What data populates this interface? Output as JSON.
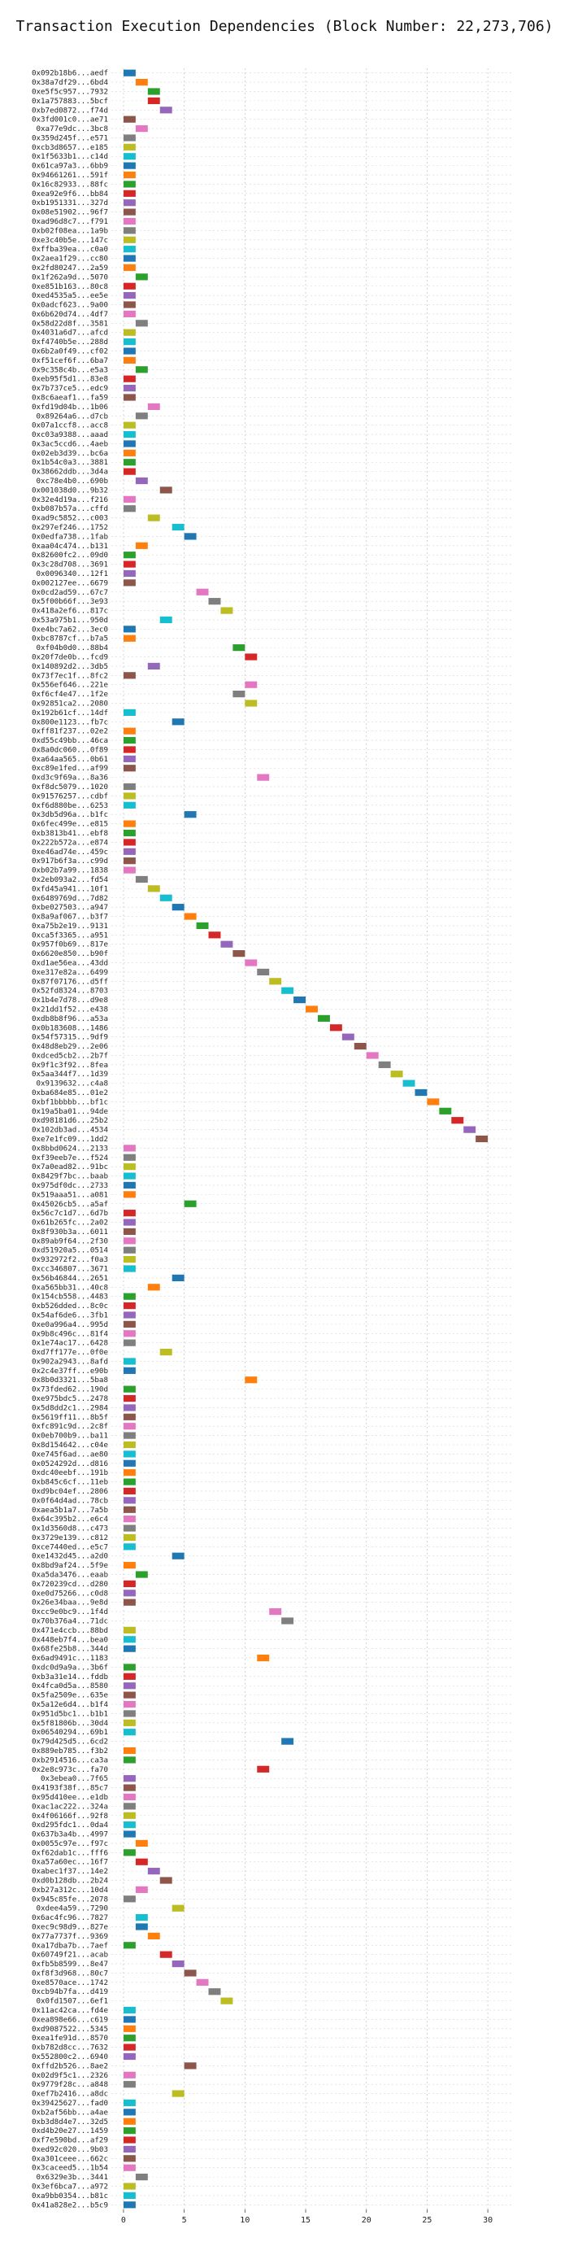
{
  "chart_data": {
    "type": "bar",
    "orientation": "horizontal",
    "title": "Transaction Execution Dependencies (Block Number: 22,273,706)",
    "xlabel": "",
    "ylabel": "",
    "xlim": [
      -1,
      32
    ],
    "xticks": [
      0,
      5,
      10,
      15,
      20,
      25,
      30
    ],
    "grid": true,
    "bar_width": 1,
    "colors": [
      "#1f77b4",
      "#ff7f0e",
      "#2ca02c",
      "#d62728",
      "#9467bd",
      "#8c564b",
      "#e377c2",
      "#7f7f7f",
      "#bcbd22",
      "#17becf"
    ],
    "transactions": [
      "0x092b18b6...aedf",
      "0x38a7df29...6bd4",
      "0xe5f5c957...7932",
      "0x1a757883...5bcf",
      "0xb7ed0872...f74d",
      "0x3fd001c0...ae71",
      "0xa77e9dc...3bc8",
      "0x359d245f...e571",
      "0xcb3d8657...e185",
      "0x1f5633b1...c14d",
      "0x61ca97a3...6bb9",
      "0x94661261...591f",
      "0x16c82933...88fc",
      "0xea92e9f6...bb84",
      "0xb1951331...327d",
      "0x08e51902...96f7",
      "0xad96d8c7...f791",
      "0xb02f08ea...1a9b",
      "0xe3c40b5e...147c",
      "0xffba39ea...c0a0",
      "0x2aea1f29...cc80",
      "0x2fd80247...2a59",
      "0x1f262a9d...5070",
      "0xe851b163...80c8",
      "0xed4535a5...ee5e",
      "0x0adcf623...9a00",
      "0x6b620d74...4df7",
      "0x58d22d8f...3581",
      "0x4031a6d7...afcd",
      "0xf4740b5e...288d",
      "0x6b2a0f49...cf02",
      "0xf51cef6f...6ba7",
      "0x9c358c4b...e5a3",
      "0xeb95f5d1...83e8",
      "0x7b737ce5...edc9",
      "0x8c6aeaf1...fa59",
      "0xfd19d04b...1b06",
      "0x89264a6...d7cb",
      "0x07a1ccf8...acc8",
      "0xc03a9388...aaad",
      "0x3ac5ccd6...4aeb",
      "0x02eb3d39...bc6a",
      "0x1b54c0a3...3881",
      "0x38662ddb...3d4a",
      "0xc78e4b0...690b",
      "0x001038d0...9b32",
      "0x32e4d19a...f216",
      "0xb087b57a...cffd",
      "0xad9c5852...c003",
      "0x297ef246...1752",
      "0x0edfa738...1fab",
      "0xaa04c474...b131",
      "0x82600fc2...09d0",
      "0x3c28d708...3691",
      "0x0096340...12f1",
      "0x002127ee...6679",
      "0x0cd2ad59...67c7",
      "0x5f00b66f...3e93",
      "0x418a2ef6...817c",
      "0x53a975b1...950d",
      "0xe4bc7a62...3ec0",
      "0xbc8787cf...b7a5",
      "0xf04b0d0...88b4",
      "0x20f7de0b...fcd9",
      "0x140892d2...3db5",
      "0x73f7ec1f...8fc2",
      "0x556ef646...221e",
      "0xf6cf4e47...1f2e",
      "0x92851ca2...2080",
      "0x192b61cf...14df",
      "0x800e1123...fb7c",
      "0xff81f237...02e2",
      "0xd55c49bb...46ca",
      "0x8a0dc060...0f89",
      "0xa64aa565...0b61",
      "0xc89e1fed...af99",
      "0xd3c9f69a...8a36",
      "0xf8dc5079...1020",
      "0x91576257...cdbf",
      "0xf6d880be...6253",
      "0x3db5d96a...b1fc",
      "0x6fec499e...e815",
      "0xb3813b41...ebf8",
      "0x222b572a...e874",
      "0xe46ad74e...459c",
      "0x917b6f3a...c99d",
      "0xb02b7a99...1838",
      "0x2eb093a2...fd54",
      "0xfd45a941...10f1",
      "0x6489769d...7d82",
      "0xbe027503...a947",
      "0x8a9af067...b3f7",
      "0xa75b2e19...9131",
      "0xca5f3365...a951",
      "0x957f0b69...817e",
      "0x6620e850...b90f",
      "0xd1ae56ea...43dd",
      "0xe317e82a...6499",
      "0x87f07176...d5ff",
      "0x52fd8324...8703",
      "0x1b4e7d78...d9e8",
      "0x21dd1f52...e438",
      "0xdb8b8f96...a53a",
      "0x0b183608...1486",
      "0x54f57315...9df9",
      "0x48d8eb29...2e06",
      "0xdced5cb2...2b7f",
      "0x9f1c3f92...8fea",
      "0x5aa344f7...1d39",
      "0x9139632...c4a8",
      "0xba684e85...01e2",
      "0xbf1bbbbb...bf1c",
      "0x19a5ba01...94de",
      "0xd98181d6...25b2",
      "0x102db3ad...4534",
      "0xe7e1fc09...1dd2",
      "0x8bbd0624...2133",
      "0xf39eeb7e...f524",
      "0x7a0ead82...91bc",
      "0x8429f7bc...baab",
      "0x975df0dc...2733",
      "0x519aaa51...a081",
      "0x45026cb5...a5af",
      "0x56c7c1d7...6d7b",
      "0x61b265fc...2a02",
      "0x8f930b3a...6011",
      "0x89ab9f64...2f30",
      "0xd51920a5...0514",
      "0x932972f2...f0a3",
      "0xcc346807...3671",
      "0x56b46844...2651",
      "0xa565bb31...40c8",
      "0x154cb558...4483",
      "0xb526dded...8c0c",
      "0x54af6de6...3fb1",
      "0xe0a996a4...995d",
      "0x9b8c496c...81f4",
      "0x1e74ac17...6428",
      "0xd7ff177e...0f0e",
      "0x902a2943...8afd",
      "0x2c4e37ff...e90b",
      "0x8b0d3321...5ba8",
      "0x73fded62...190d",
      "0xe975bdc5...2478",
      "0x5d8dd2c1...2984",
      "0x5619ff11...8b5f",
      "0xfc891c9d...2c8f",
      "0x0eb700b9...ba11",
      "0x8d154642...c04e",
      "0xe745f6ad...ae80",
      "0x0524292d...d816",
      "0xdc40eebf...191b",
      "0xb845c6cf...11eb",
      "0xd9bc04ef...2806",
      "0x0f64d4ad...78cb",
      "0xaea5b1a7...7a5b",
      "0x64c395b2...e6c4",
      "0x1d3560d8...c473",
      "0x3729e139...c812",
      "0xce7440ed...e5c7",
      "0xe1432d45...a2d0",
      "0x8bd9af24...5f9e",
      "0xa5da3476...eaab",
      "0x720239cd...d280",
      "0xe0d75266...c0d8",
      "0x26e34baa...9e8d",
      "0xcc9e0bc9...1f4d",
      "0x70b376a4...71dc",
      "0x471e4ccb...88bd",
      "0x448eb7f4...bea0",
      "0x68fe25b8...344d",
      "0x6ad9491c...1183",
      "0xdc0d9a9a...3b6f",
      "0xb3a31e14...fddb",
      "0x4fca0d5a...8580",
      "0x5fa2509e...635e",
      "0x5a12e6d4...b1f4",
      "0x951d5bc1...b1b1",
      "0x5f81806b...30d4",
      "0x06540294...69b1",
      "0x79d425d5...6cd2",
      "0x889eb785...f3b2",
      "0xb2914516...ca3a",
      "0x2e8c973c...fa70",
      "0x3ebea0...7f65",
      "0x4193f38f...85c7",
      "0x95d410ee...e1db",
      "0xac1ac222...324a",
      "0x4f06166f...92f8",
      "0xd295fdc1...0da4",
      "0x637b3a4b...4997",
      "0x0055c97e...f97c",
      "0xf62dab1c...fff6",
      "0xa57a60ec...16f7",
      "0xabec1f37...14e2",
      "0xd0b128db...2b24",
      "0xb27a312c...10d4",
      "0x945c85fe...2078",
      "0xdee4a59...7290",
      "0x6ac4fc96...7827",
      "0xec9c98d9...827e",
      "0x77a7737f...9369",
      "0xa17dba7b...7aef",
      "0x60749f21...acab",
      "0xfb5b8599...8e47",
      "0xf8f3d968...80c7",
      "0xe8570ace...1742",
      "0xcb94b7fa...d419",
      "0x0fd1507...6ef1",
      "0x11ac42ca...fd4e",
      "0xea898e66...c619",
      "0xd9087522...5345",
      "0xea1fe91d...8570",
      "0xb782d8cc...7632",
      "0x552800c2...6940",
      "0xffd2b526...8ae2",
      "0x02d9f5c1...2326",
      "0x9779f28c...a848",
      "0xef7b2416...a8dc",
      "0x39425627...fad0",
      "0xb2af56bb...a4ae",
      "0xb3d8d4e7...32d5",
      "0xd4b20e27...1459",
      "0xf7e590bd...af29",
      "0xed92c020...9b03",
      "0xa301ceee...662c",
      "0x3caceed5...1b54",
      "0x6329e3b...3441",
      "0x3ef6bca7...a972",
      "0xa9bb0354...b81c",
      "0x41a828e2...b5c9"
    ],
    "start": [
      0,
      1,
      2,
      2,
      3,
      0,
      1,
      0,
      0,
      0,
      0,
      0,
      0,
      0,
      0,
      0,
      0,
      0,
      0,
      0,
      0,
      0,
      1,
      0,
      0,
      0,
      0,
      1,
      0,
      0,
      0,
      0,
      1,
      0,
      0,
      0,
      2,
      1,
      0,
      0,
      0,
      0,
      0,
      0,
      1,
      3,
      0,
      0,
      2,
      4,
      5,
      1,
      0,
      0,
      0,
      0,
      6,
      7,
      8,
      3,
      0,
      0,
      9,
      10,
      2,
      0,
      10,
      9,
      10,
      0,
      4,
      0,
      0,
      0,
      0,
      0,
      11,
      0,
      0,
      0,
      5,
      0,
      0,
      0,
      0,
      0,
      0,
      1,
      2,
      3,
      4,
      5,
      6,
      7,
      8,
      9,
      10,
      11,
      12,
      13,
      14,
      15,
      16,
      17,
      18,
      19,
      20,
      21,
      22,
      23,
      24,
      25,
      26,
      27,
      28,
      29,
      0,
      0,
      0,
      0,
      0,
      0,
      5,
      0,
      0,
      0,
      0,
      0,
      0,
      0,
      4,
      2,
      0,
      0,
      0,
      0,
      0,
      0,
      3,
      0,
      0,
      10,
      0,
      0,
      0,
      0,
      0,
      0,
      0,
      0,
      0,
      0,
      0,
      0,
      0,
      0,
      0,
      0,
      0,
      0,
      4,
      0,
      1,
      0,
      0,
      0,
      12,
      13,
      0,
      0,
      0,
      11,
      0,
      0,
      0,
      0,
      0,
      0,
      0,
      0,
      13,
      0,
      0,
      11,
      0,
      0,
      0,
      0,
      0,
      0,
      0,
      1,
      0,
      1,
      2,
      3,
      1,
      0,
      4,
      1,
      1,
      2,
      0,
      3,
      4,
      5,
      6,
      7,
      8,
      0,
      0,
      0,
      0,
      0,
      0,
      5,
      0,
      0,
      4,
      0,
      0,
      0,
      0,
      0,
      0,
      0,
      0,
      1,
      0,
      0,
      0
    ]
  }
}
